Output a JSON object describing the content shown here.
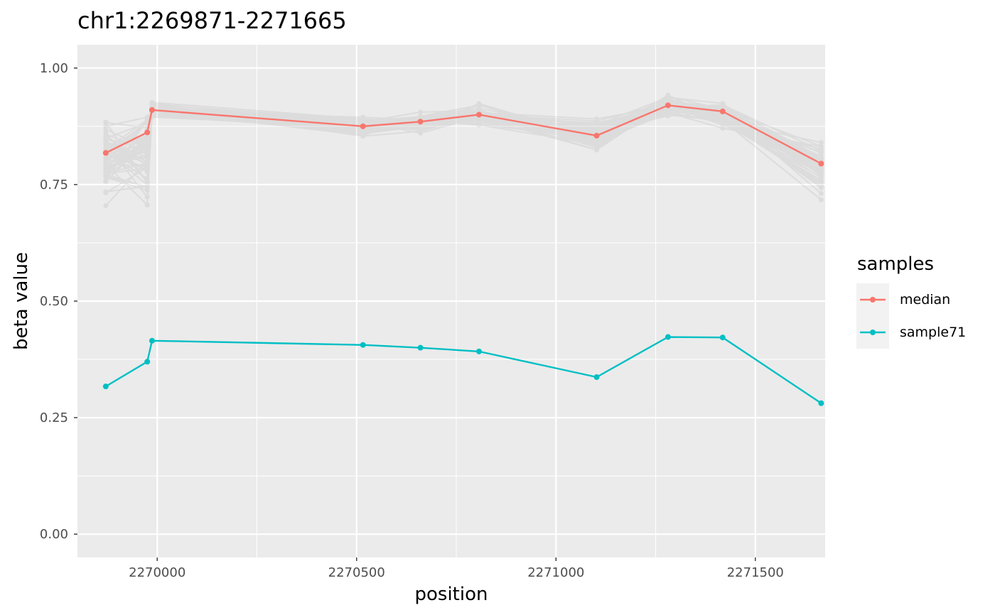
{
  "chart_data": {
    "type": "line",
    "title": "chr1:2269871-2271665",
    "xlabel": "position",
    "ylabel": "beta value",
    "xlim": [
      2269800,
      2271675
    ],
    "ylim": [
      -0.05,
      1.05
    ],
    "x_ticks": [
      2270000,
      2270500,
      2271000,
      2271500
    ],
    "x_tick_labels": [
      "2270000",
      "2270500",
      "2271000",
      "2271500"
    ],
    "y_ticks": [
      0,
      0.25,
      0.5,
      0.75,
      1
    ],
    "y_tick_labels": [
      "0.00",
      "0.25",
      "0.50",
      "0.75",
      "1.00"
    ],
    "grid": true,
    "background": "#ebebeb",
    "x": [
      2269871,
      2269975,
      2269987,
      2270516,
      2270660,
      2270807,
      2271102,
      2271281,
      2271418,
      2271665
    ],
    "series": [
      {
        "name": "median",
        "color": "#f8766d",
        "values": [
          0.818,
          0.862,
          0.91,
          0.875,
          0.885,
          0.9,
          0.855,
          0.92,
          0.907,
          0.795
        ]
      },
      {
        "name": "sample71",
        "color": "#00bfc4",
        "values": [
          0.317,
          0.37,
          0.415,
          0.406,
          0.4,
          0.392,
          0.337,
          0.423,
          0.422,
          0.281
        ]
      }
    ],
    "background_samples": {
      "color": "#7f7f7f",
      "count": 60,
      "ranges": [
        [
          0.69,
          0.91
        ],
        [
          0.7,
          0.94
        ],
        [
          0.89,
          0.93
        ],
        [
          0.85,
          0.905
        ],
        [
          0.85,
          0.92
        ],
        [
          0.865,
          0.93
        ],
        [
          0.815,
          0.895
        ],
        [
          0.89,
          0.95
        ],
        [
          0.855,
          0.945
        ],
        [
          0.705,
          0.86
        ]
      ]
    },
    "legend": {
      "title": "samples",
      "position": "right",
      "entries": [
        "median",
        "sample71"
      ]
    }
  }
}
